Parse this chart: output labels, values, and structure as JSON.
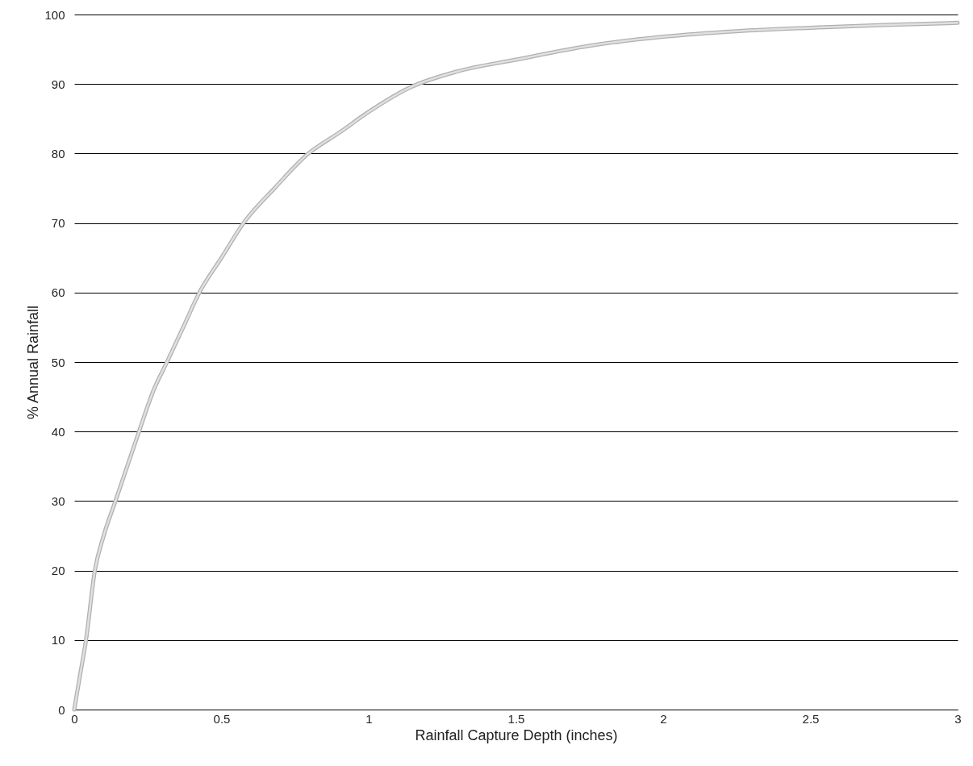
{
  "chart_data": {
    "type": "line",
    "xlabel": "Rainfall Capture Depth (inches)",
    "ylabel": "% Annual Rainfall",
    "x": [
      0,
      0.02,
      0.04,
      0.07,
      0.1,
      0.14,
      0.18,
      0.22,
      0.27,
      0.315,
      0.37,
      0.425,
      0.5,
      0.575,
      0.68,
      0.795,
      0.9,
      1,
      1.14,
      1.3,
      1.5,
      1.75,
      2,
      2.25,
      2.5,
      2.75,
      3
    ],
    "series": [
      {
        "color": "#b0b0b0",
        "values": [
          0,
          5,
          10,
          20,
          25,
          30,
          35,
          40,
          46,
          50,
          55,
          60,
          65,
          70,
          75,
          80,
          83,
          86,
          89.5,
          91.8,
          93.5,
          95.5,
          96.8,
          97.6,
          98.1,
          98.5,
          98.8
        ]
      }
    ],
    "xlim": [
      0,
      3
    ],
    "xticks": [
      0,
      0.5,
      1,
      1.5,
      2,
      2.5,
      3
    ],
    "ylim": [
      0,
      100
    ],
    "yticks": [
      0,
      10,
      20,
      30,
      40,
      50,
      60,
      70,
      80,
      90,
      100
    ],
    "grid": "y",
    "marker": "none",
    "line_style": "solid"
  }
}
